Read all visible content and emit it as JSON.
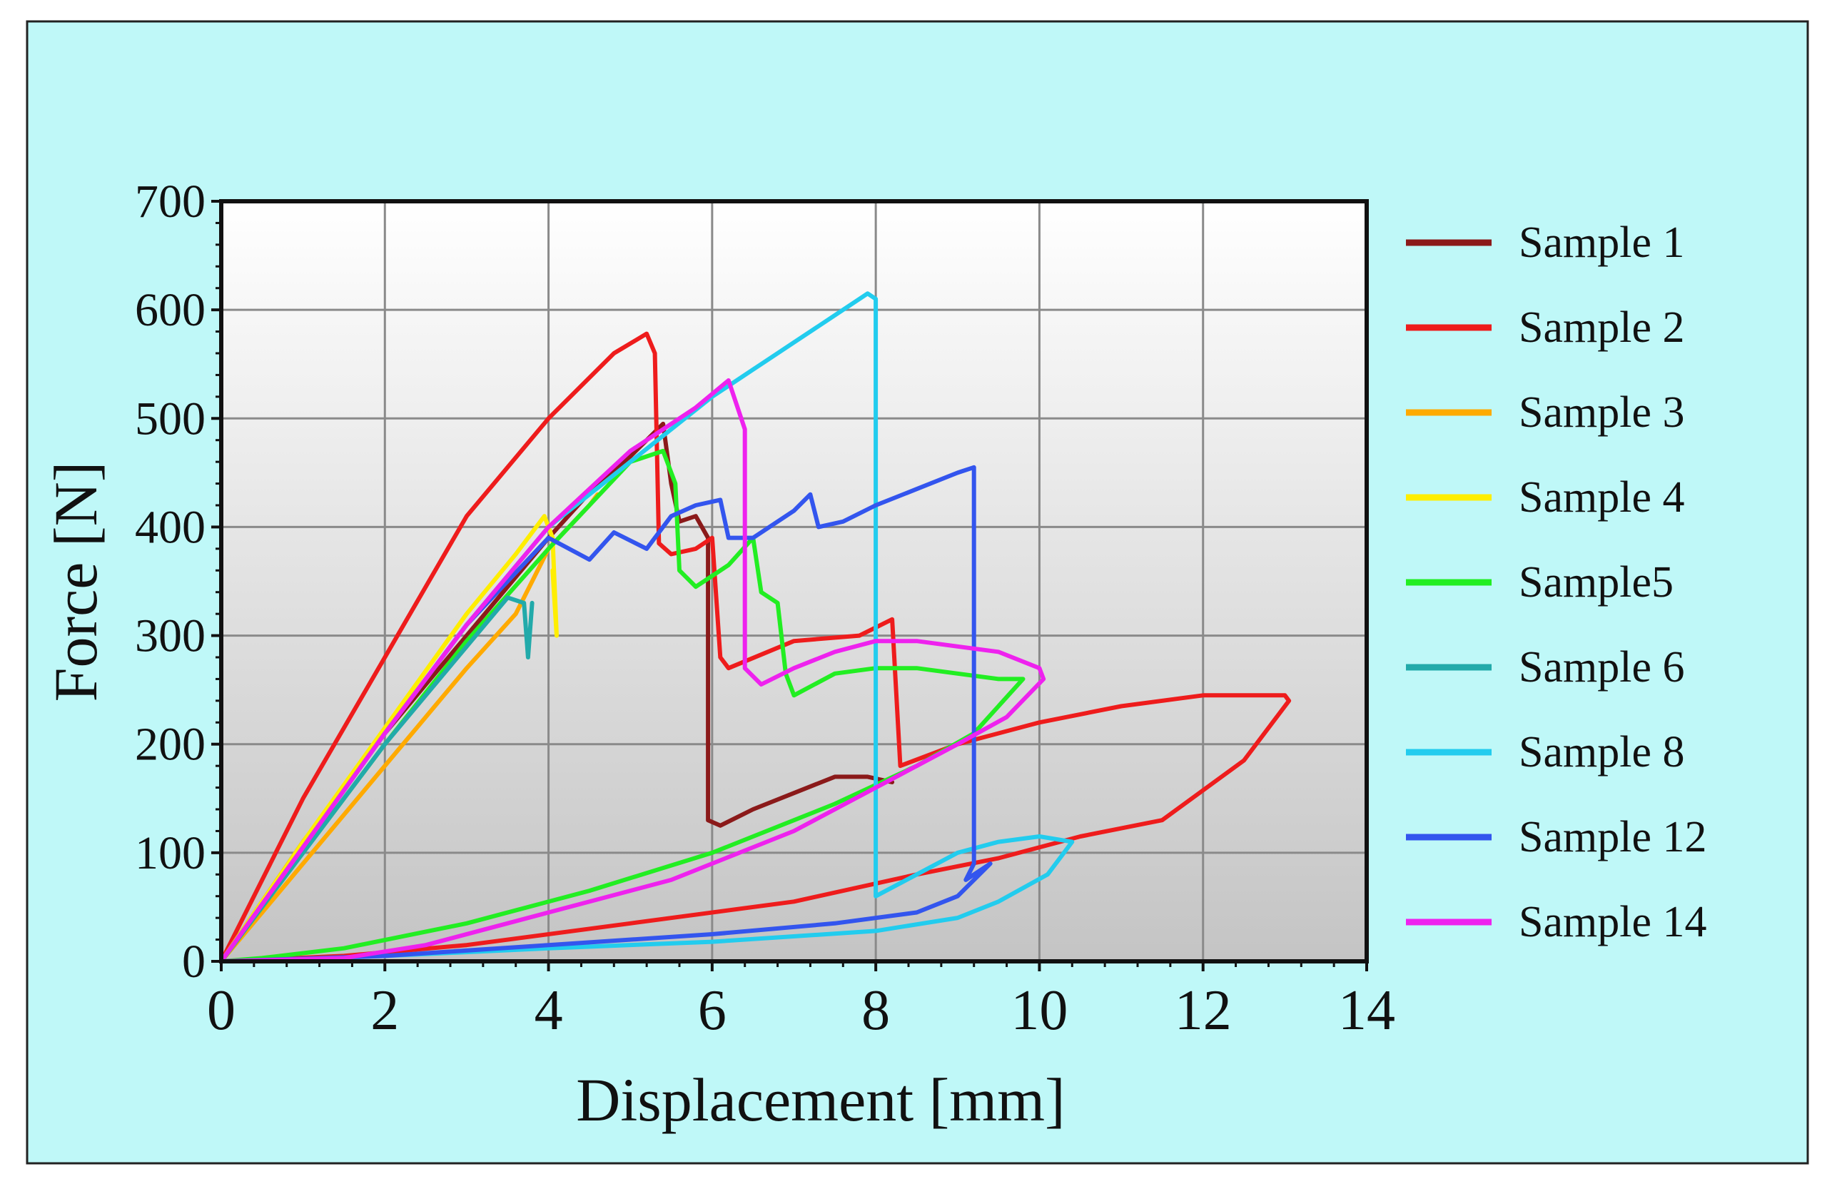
{
  "chart_data": {
    "type": "line",
    "title": "",
    "xlabel": "Displacement [mm]",
    "ylabel": "Force [N]",
    "xlim": [
      0,
      14
    ],
    "ylim": [
      0,
      700
    ],
    "xticks": [
      0,
      2,
      4,
      6,
      8,
      10,
      12,
      14
    ],
    "yticks": [
      0,
      100,
      200,
      300,
      400,
      500,
      600,
      700
    ],
    "grid": true,
    "legend_position": "right",
    "background": "#bff8f8",
    "series": [
      {
        "name": "Sample 1",
        "color": "#8b1a1a",
        "x": [
          0,
          1,
          2,
          3,
          4,
          4.6,
          5,
          5.4,
          5.5,
          5.6,
          5.8,
          5.95,
          5.95,
          6.1,
          6.5,
          7,
          7.5,
          7.9,
          8.2
        ],
        "y": [
          0,
          110,
          210,
          300,
          390,
          440,
          465,
          495,
          440,
          405,
          410,
          390,
          130,
          125,
          140,
          155,
          170,
          170,
          165
        ]
      },
      {
        "name": "Sample 2",
        "color": "#ee1c1c",
        "x": [
          0,
          1,
          2,
          3,
          4,
          4.8,
          5.2,
          5.3,
          5.35,
          5.5,
          5.8,
          6.0,
          6.1,
          6.2,
          7,
          7.8,
          8.2,
          8.3,
          9,
          10,
          11,
          12,
          13,
          13.05,
          12.5,
          11.5,
          10.5,
          9.5,
          8.5,
          7,
          5,
          3,
          1.5,
          0
        ],
        "y": [
          0,
          150,
          280,
          410,
          500,
          560,
          578,
          560,
          385,
          375,
          380,
          390,
          280,
          270,
          295,
          300,
          315,
          180,
          200,
          220,
          235,
          245,
          245,
          240,
          185,
          130,
          115,
          95,
          80,
          55,
          35,
          15,
          5,
          0
        ]
      },
      {
        "name": "Sample 3",
        "color": "#ffaa00",
        "x": [
          0,
          1,
          2,
          3,
          3.6,
          4.0,
          4.5,
          4.6
        ],
        "y": [
          0,
          90,
          180,
          270,
          320,
          380,
          420,
          430
        ]
      },
      {
        "name": "Sample 4",
        "color": "#ffee00",
        "x": [
          0,
          1,
          2,
          3,
          3.6,
          3.95,
          4.05,
          4.1,
          4.05
        ],
        "y": [
          0,
          110,
          215,
          320,
          375,
          410,
          390,
          300,
          360
        ]
      },
      {
        "name": "Sample5",
        "color": "#22ee22",
        "x": [
          0,
          1,
          2,
          3,
          4,
          5,
          5.4,
          5.55,
          5.6,
          5.8,
          6.2,
          6.5,
          6.6,
          6.8,
          6.9,
          7.0,
          7.5,
          8,
          8.5,
          9,
          9.5,
          9.8,
          9.2,
          8.5,
          7.5,
          6,
          4.5,
          3,
          1.5,
          0.5,
          0
        ],
        "y": [
          0,
          100,
          200,
          295,
          380,
          460,
          470,
          440,
          360,
          345,
          365,
          390,
          340,
          330,
          265,
          245,
          265,
          270,
          270,
          265,
          260,
          260,
          210,
          180,
          145,
          100,
          65,
          35,
          12,
          3,
          0
        ]
      },
      {
        "name": "Sample 6",
        "color": "#22aaaa",
        "x": [
          0,
          1,
          2,
          3,
          3.5,
          3.7,
          3.75,
          3.8
        ],
        "y": [
          0,
          100,
          200,
          290,
          335,
          330,
          280,
          330
        ]
      },
      {
        "name": "Sample 8",
        "color": "#22ccee",
        "x": [
          0,
          1,
          2,
          3,
          4,
          5,
          6,
          6.5,
          7,
          7.5,
          7.9,
          8.0,
          8.0,
          8.5,
          9,
          9.5,
          10,
          10.4,
          10.1,
          9.5,
          9,
          8,
          6,
          4,
          2,
          1,
          0
        ],
        "y": [
          0,
          105,
          210,
          310,
          400,
          460,
          520,
          545,
          570,
          595,
          615,
          610,
          60,
          80,
          100,
          110,
          115,
          110,
          80,
          55,
          40,
          28,
          18,
          12,
          5,
          2,
          0
        ]
      },
      {
        "name": "Sample 12",
        "color": "#3355ee",
        "x": [
          0,
          1,
          2,
          3,
          4,
          4.5,
          4.8,
          5.2,
          5.5,
          5.8,
          6.1,
          6.2,
          6.5,
          7,
          7.2,
          7.3,
          7.6,
          8,
          8.5,
          9,
          9.2,
          9.2,
          9.1,
          9.4,
          9.0,
          8.5,
          7.5,
          6,
          4,
          2,
          0
        ],
        "y": [
          0,
          105,
          210,
          310,
          390,
          370,
          395,
          380,
          410,
          420,
          425,
          390,
          390,
          415,
          430,
          400,
          405,
          420,
          435,
          450,
          455,
          90,
          75,
          90,
          60,
          45,
          35,
          25,
          15,
          5,
          0
        ]
      },
      {
        "name": "Sample 14",
        "color": "#ee22ee",
        "x": [
          0,
          1,
          2,
          3,
          4,
          5,
          5.8,
          6.2,
          6.4,
          6.4,
          6.6,
          7,
          7.5,
          8,
          8.5,
          9,
          9.5,
          10,
          10.05,
          9.6,
          9,
          8,
          7,
          5.5,
          4,
          2.5,
          1.5,
          0
        ],
        "y": [
          0,
          105,
          210,
          310,
          400,
          470,
          510,
          535,
          490,
          270,
          255,
          270,
          285,
          295,
          295,
          290,
          285,
          270,
          260,
          225,
          200,
          160,
          120,
          75,
          45,
          15,
          3,
          0
        ]
      }
    ]
  }
}
